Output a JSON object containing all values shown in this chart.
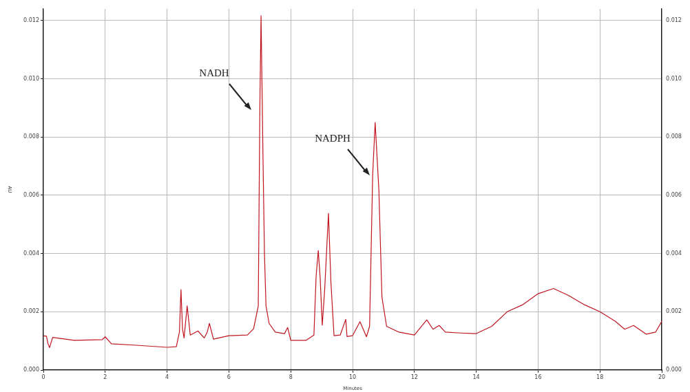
{
  "chart_data": {
    "type": "line",
    "xlabel": "Minutes",
    "ylabel": "AU",
    "xlim": [
      0,
      20
    ],
    "xticks": [
      0,
      2,
      4,
      6,
      8,
      10,
      12,
      14,
      16,
      18,
      20
    ],
    "ylim": [
      0,
      0.0124
    ],
    "yticks": [
      {
        "value": 0,
        "label": "0.000"
      },
      {
        "value": 0.002,
        "label": "0.002"
      },
      {
        "value": 0.004,
        "label": "0.004"
      },
      {
        "value": 0.006,
        "label": "0.006"
      },
      {
        "value": 0.008,
        "label": "0.008"
      },
      {
        "value": 0.01,
        "label": "0.010"
      },
      {
        "value": 0.012,
        "label": "0.012"
      }
    ],
    "y2lim": [
      0,
      0.0124
    ],
    "y2ticks": [
      {
        "value": 0,
        "label": "0.000"
      },
      {
        "value": 0.002,
        "label": "0.002"
      },
      {
        "value": 0.004,
        "label": "0.004"
      },
      {
        "value": 0.006,
        "label": "0.006"
      },
      {
        "value": 0.008,
        "label": "0.008"
      },
      {
        "value": 0.01,
        "label": "0.010"
      },
      {
        "value": 0.012,
        "label": "0.012"
      }
    ],
    "grid": true,
    "marker": "none",
    "line_style": "solid",
    "annotations": [
      "NADH",
      "NADPH"
    ],
    "series": [
      {
        "color": "#c0141e",
        "x": [
          0,
          0.1,
          0.15,
          0.2,
          0.3,
          1.0,
          1.9,
          2.0,
          2.2,
          3.0,
          4.0,
          4.3,
          4.4,
          4.45,
          4.5,
          4.55,
          4.65,
          4.75,
          5.0,
          5.2,
          5.3,
          5.37,
          5.5,
          6.0,
          6.6,
          6.8,
          6.95,
          7.0,
          7.04,
          7.1,
          7.15,
          7.2,
          7.3,
          7.5,
          7.8,
          7.9,
          8.0,
          8.5,
          8.75,
          8.82,
          8.89,
          8.95,
          9.02,
          9.1,
          9.22,
          9.3,
          9.4,
          9.6,
          9.78,
          9.82,
          10.0,
          10.24,
          10.45,
          10.55,
          10.65,
          10.73,
          10.85,
          10.95,
          11.1,
          11.5,
          12.0,
          12.4,
          12.6,
          12.8,
          13.0,
          13.5,
          14.0,
          14.5,
          15.0,
          15.5,
          16.0,
          16.5,
          17.0,
          17.5,
          18.0,
          18.5,
          18.8,
          19.09,
          19.5,
          19.8,
          20.0
        ],
        "values": [
          0.00118,
          0.00116,
          0.0009,
          0.00077,
          0.00112,
          0.00102,
          0.00104,
          0.00114,
          0.0009,
          0.00085,
          0.00078,
          0.0008,
          0.0013,
          0.00276,
          0.0014,
          0.0011,
          0.0022,
          0.0012,
          0.00134,
          0.0011,
          0.0013,
          0.0016,
          0.00106,
          0.00118,
          0.0012,
          0.00142,
          0.0022,
          0.0089,
          0.01217,
          0.0075,
          0.004,
          0.0022,
          0.0016,
          0.0013,
          0.00125,
          0.00146,
          0.00102,
          0.00102,
          0.0012,
          0.0032,
          0.0041,
          0.0032,
          0.00154,
          0.0028,
          0.00538,
          0.003,
          0.00118,
          0.0012,
          0.00174,
          0.00115,
          0.00118,
          0.00166,
          0.00114,
          0.0015,
          0.0067,
          0.0085,
          0.0062,
          0.0025,
          0.0015,
          0.0013,
          0.0012,
          0.00172,
          0.0014,
          0.00153,
          0.0013,
          0.00127,
          0.00125,
          0.0015,
          0.002,
          0.00224,
          0.00262,
          0.0028,
          0.00255,
          0.00224,
          0.002,
          0.00167,
          0.0014,
          0.00153,
          0.00123,
          0.0013,
          0.00167
        ]
      }
    ]
  }
}
